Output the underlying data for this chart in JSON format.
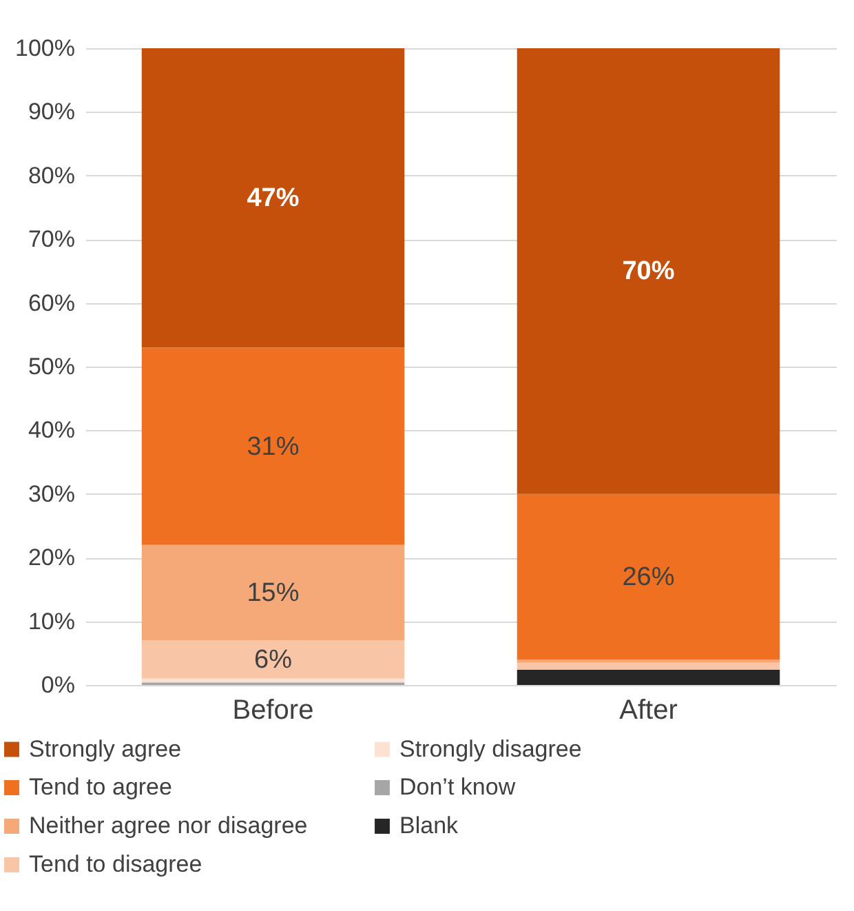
{
  "chart_data": {
    "type": "bar",
    "stacked": true,
    "categories": [
      "Before",
      "After"
    ],
    "series": [
      {
        "name": "Blank",
        "color": "#262626",
        "values": [
          0,
          2.4
        ],
        "value_labels": [
          null,
          null
        ]
      },
      {
        "name": "Don’t know",
        "color": "#a6a6a6",
        "values": [
          0.4,
          0
        ],
        "value_labels": [
          null,
          null
        ]
      },
      {
        "name": "Strongly disagree",
        "color": "#fde2d4",
        "values": [
          0.6,
          0
        ],
        "value_labels": [
          null,
          null
        ]
      },
      {
        "name": "Tend to disagree",
        "color": "#f9c5a7",
        "values": [
          6,
          1.1
        ],
        "value_labels": [
          "6%",
          null
        ]
      },
      {
        "name": "Neither agree nor disagree",
        "color": "#f5a878",
        "values": [
          15,
          0.5
        ],
        "value_labels": [
          "15%",
          null
        ]
      },
      {
        "name": "Tend to agree",
        "color": "#f07022",
        "values": [
          31,
          26
        ],
        "value_labels": [
          "31%",
          "26%"
        ]
      },
      {
        "name": "Strongly agree",
        "color": "#c4500c",
        "values": [
          47,
          70
        ],
        "value_labels": [
          "47%",
          "70%"
        ]
      }
    ],
    "ylim": [
      0,
      100
    ],
    "yticks": [
      {
        "value": 0,
        "label": "0%"
      },
      {
        "value": 10,
        "label": "10%"
      },
      {
        "value": 20,
        "label": "20%"
      },
      {
        "value": 30,
        "label": "30%"
      },
      {
        "value": 40,
        "label": "40%"
      },
      {
        "value": 50,
        "label": "50%"
      },
      {
        "value": 60,
        "label": "60%"
      },
      {
        "value": 70,
        "label": "70%"
      },
      {
        "value": 80,
        "label": "80%"
      },
      {
        "value": 90,
        "label": "90%"
      },
      {
        "value": 100,
        "label": "100%"
      }
    ],
    "grid": "y",
    "legend": "bottom"
  }
}
